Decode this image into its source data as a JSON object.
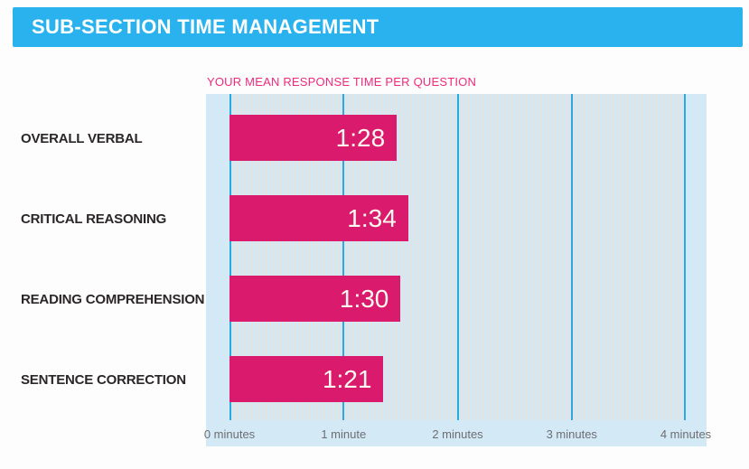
{
  "header": {
    "title": "SUB-SECTION TIME MANAGEMENT"
  },
  "chart": {
    "subtitle": "YOUR MEAN RESPONSE TIME PER QUESTION"
  },
  "chart_data": {
    "type": "bar",
    "orientation": "horizontal",
    "title": "YOUR MEAN RESPONSE TIME PER QUESTION",
    "categories": [
      "OVERALL VERBAL",
      "CRITICAL REASONING",
      "READING COMPREHENSION",
      "SENTENCE CORRECTION"
    ],
    "value_labels": [
      "1:28",
      "1:34",
      "1:30",
      "1:21"
    ],
    "values_seconds": [
      88,
      94,
      90,
      81
    ],
    "axis_max_seconds": 240,
    "x_tick_labels": [
      "0 minutes",
      "1 minute",
      "2 minutes",
      "3 minutes",
      "4 minutes"
    ],
    "xlim_minutes": [
      0,
      4
    ],
    "grid": "major cyan vertical gridlines each minute over fine vertical stripe pattern",
    "legend_position": "none",
    "value_label_position": "inside-right"
  },
  "colors": {
    "header_bg": "#2ab2ef",
    "header_text": "#ffffff",
    "subtitle_text": "#ee2a7c",
    "panel_bg": "#d4e9f6",
    "plot_stripe": "#e7e3dc",
    "gridline": "#29abe2",
    "bar": "#d91a6d",
    "bar_value_text": "#fdfaf0",
    "category_text": "#2b2628",
    "axis_text": "#6d6e71"
  }
}
